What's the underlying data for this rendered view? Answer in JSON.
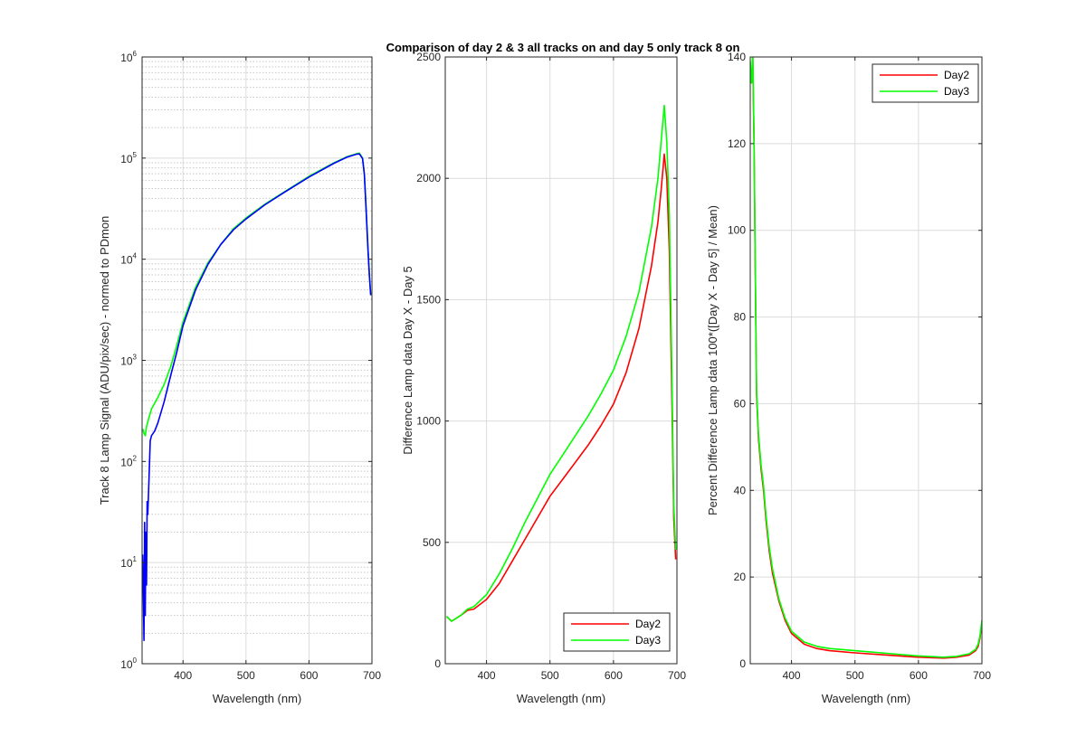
{
  "figure_title": "Comparison of day 2 & 3 all tracks on and day 5 only track 8 on",
  "colors": {
    "day2": "#ff0000",
    "day3": "#00ff00",
    "blue": "#0000ff",
    "axis": "#262626",
    "grid": "#d9d9d9"
  },
  "chart_data": [
    {
      "type": "line",
      "yscale": "log",
      "xlabel": "Wavelength (nm)",
      "ylabel": "Track 8 Lamp Signal (ADU/pix/sec) - normed to PDmon",
      "xlim": [
        335,
        700
      ],
      "ylim": [
        1,
        1000000
      ],
      "xticks": [
        400,
        500,
        600,
        700
      ],
      "xtick_labels": [
        "400",
        "500",
        "600",
        "700"
      ],
      "ytick_exponents": [
        0,
        1,
        2,
        3,
        4,
        5,
        6
      ],
      "ytick_base": "10",
      "grid": "on",
      "minor_grid": "on",
      "series": [
        {
          "name": "green",
          "color": "#00ff00",
          "x": [
            336,
            338,
            340,
            342,
            345,
            350,
            360,
            370,
            380,
            390,
            400,
            420,
            440,
            460,
            480,
            500,
            530,
            560,
            600,
            640,
            660,
            675,
            680,
            685,
            688,
            690,
            692,
            694,
            696,
            698
          ],
          "y": [
            210,
            190,
            180,
            220,
            260,
            330,
            430,
            580,
            850,
            1400,
            2400,
            5300,
            9300,
            14000,
            20000,
            25500,
            35000,
            46000,
            66000,
            90000,
            103000,
            110000,
            112000,
            100000,
            70000,
            40000,
            22000,
            12000,
            7000,
            4500
          ]
        },
        {
          "name": "blue",
          "color": "#0000ff",
          "x": [
            336,
            338,
            339,
            340,
            341,
            342,
            343,
            344,
            346,
            348,
            350,
            355,
            360,
            370,
            380,
            390,
            400,
            420,
            440,
            460,
            480,
            500,
            530,
            560,
            600,
            640,
            660,
            675,
            680,
            685,
            688,
            690,
            692,
            694,
            696,
            698
          ],
          "y": [
            12,
            1.7,
            25,
            3,
            20,
            6,
            40,
            30,
            70,
            160,
            180,
            200,
            240,
            390,
            690,
            1200,
            2200,
            5000,
            9000,
            14000,
            19500,
            25000,
            34500,
            45500,
            65000,
            89000,
            102000,
            109000,
            110000,
            99000,
            69000,
            39000,
            21000,
            11500,
            6800,
            4400
          ]
        }
      ]
    },
    {
      "type": "line",
      "xlabel": "Wavelength (nm)",
      "ylabel": "Difference Lamp data Day X - Day 5",
      "xlim": [
        335,
        700
      ],
      "ylim": [
        0,
        2500
      ],
      "xticks": [
        400,
        500,
        600,
        700
      ],
      "xtick_labels": [
        "400",
        "500",
        "600",
        "700"
      ],
      "yticks": [
        0,
        500,
        1000,
        1500,
        2000,
        2500
      ],
      "ytick_labels": [
        "0",
        "500",
        "1000",
        "1500",
        "2000",
        "2500"
      ],
      "grid": "on",
      "legend": "bottom-right",
      "series": [
        {
          "name": "Day2",
          "color": "#ff0000",
          "x": [
            337,
            345,
            360,
            370,
            380,
            400,
            420,
            440,
            460,
            480,
            500,
            520,
            540,
            560,
            580,
            600,
            620,
            640,
            660,
            670,
            675,
            680,
            684,
            688,
            692,
            695,
            698
          ],
          "y": [
            195,
            175,
            200,
            220,
            225,
            265,
            330,
            420,
            510,
            600,
            690,
            760,
            830,
            900,
            980,
            1070,
            1200,
            1380,
            1640,
            1820,
            1950,
            2100,
            2000,
            1700,
            1100,
            600,
            430
          ]
        },
        {
          "name": "Day3",
          "color": "#00ff00",
          "x": [
            337,
            345,
            360,
            370,
            380,
            400,
            420,
            440,
            460,
            480,
            500,
            520,
            540,
            560,
            580,
            600,
            620,
            640,
            660,
            670,
            675,
            680,
            684,
            688,
            692,
            695,
            698
          ],
          "y": [
            195,
            175,
            200,
            225,
            235,
            285,
            370,
            470,
            580,
            680,
            780,
            860,
            940,
            1020,
            1110,
            1210,
            1350,
            1530,
            1800,
            2000,
            2150,
            2300,
            2150,
            1850,
            1200,
            650,
            470
          ]
        }
      ]
    },
    {
      "type": "line",
      "xlabel": "Wavelength (nm)",
      "ylabel": "Percent Difference Lamp data 100*([Day X - Day 5] / Mean)",
      "xlim": [
        335,
        700
      ],
      "ylim": [
        0,
        140
      ],
      "xticks": [
        400,
        500,
        600,
        700
      ],
      "xtick_labels": [
        "400",
        "500",
        "600",
        "700"
      ],
      "yticks": [
        0,
        20,
        40,
        60,
        80,
        100,
        120,
        140
      ],
      "ytick_labels": [
        "0",
        "20",
        "40",
        "60",
        "80",
        "100",
        "120",
        "140"
      ],
      "grid": "on",
      "legend": "top-right",
      "series": [
        {
          "name": "Day2",
          "color": "#ff0000",
          "x": [
            335,
            337,
            339,
            341,
            343,
            345,
            348,
            352,
            356,
            360,
            365,
            370,
            380,
            390,
            400,
            420,
            440,
            460,
            500,
            550,
            600,
            640,
            660,
            680,
            690,
            694,
            697,
            700
          ],
          "y": [
            138,
            134,
            140,
            120,
            90,
            62,
            52,
            45,
            40,
            33,
            26,
            21,
            14.5,
            10,
            7,
            4.5,
            3.5,
            3,
            2.5,
            2,
            1.5,
            1.3,
            1.5,
            2,
            3,
            4,
            6,
            9.5
          ]
        },
        {
          "name": "Day3",
          "color": "#00ff00",
          "x": [
            335,
            337,
            339,
            341,
            343,
            345,
            348,
            352,
            356,
            360,
            365,
            370,
            380,
            390,
            400,
            420,
            440,
            460,
            500,
            550,
            600,
            640,
            660,
            680,
            690,
            694,
            697,
            700
          ],
          "y": [
            139,
            134,
            141,
            121,
            91,
            63,
            53,
            46,
            41,
            34,
            27,
            22,
            15,
            10.5,
            7.5,
            5,
            4,
            3.5,
            3,
            2.4,
            1.8,
            1.5,
            1.7,
            2.3,
            3.3,
            4.5,
            6.5,
            10
          ]
        }
      ]
    }
  ]
}
